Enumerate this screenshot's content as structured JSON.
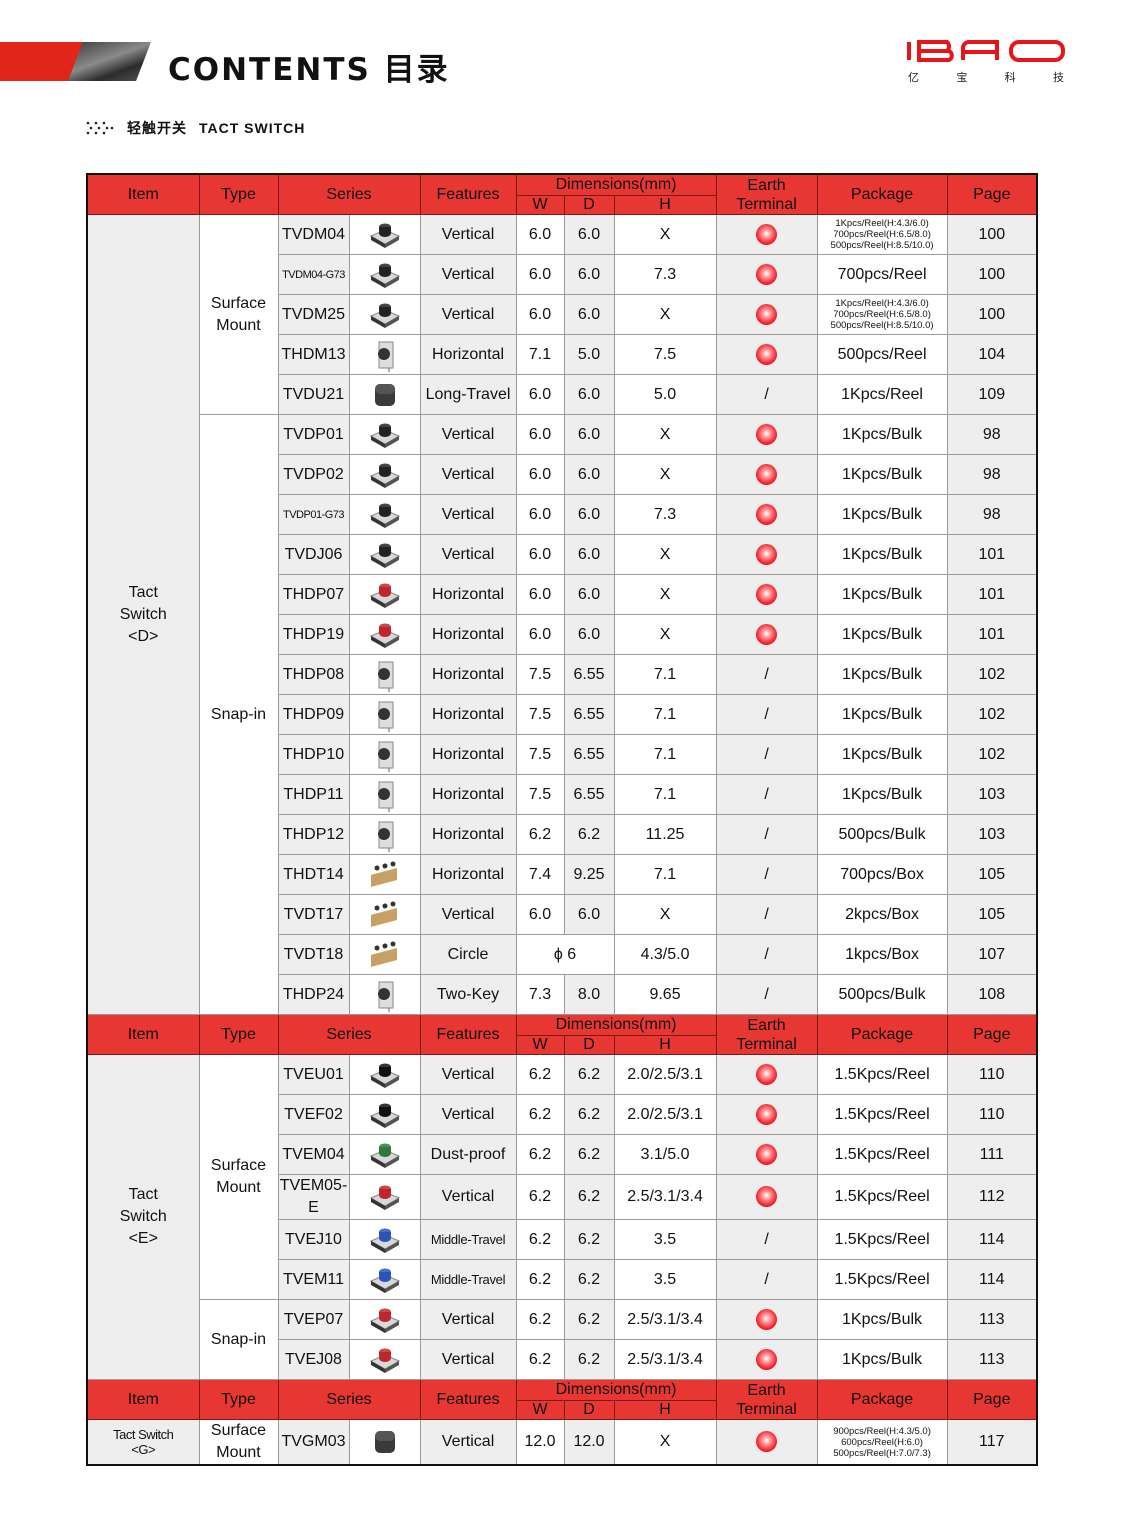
{
  "header": {
    "title": "CONTENTS 目录",
    "subtitle_cn": "轻触开关",
    "subtitle_en": "TACT SWITCH"
  },
  "logo": {
    "text": "IBAO",
    "subtitle": [
      "亿",
      "宝",
      "科",
      "技"
    ]
  },
  "colors": {
    "accent": "#e83632",
    "earth_dot": "#f2202a"
  },
  "columns": {
    "item": "Item",
    "type": "Type",
    "series": "Series",
    "features": "Features",
    "dimensions": "Dimensions(mm)",
    "w": "W",
    "d": "D",
    "h": "H",
    "earth": "Earth\nTerminal",
    "package": "Package",
    "page": "Page"
  },
  "sections": [
    {
      "item": "Tact\nSwitch\n<D>",
      "groups": [
        {
          "type": "Surface\nMount",
          "rows": [
            {
              "series": "TVDM04",
              "icon": "smd-black",
              "features": "Vertical",
              "w": "6.0",
              "d": "6.0",
              "h": "X",
              "earth": true,
              "package": [
                "1Kpcs/Reel(H:4.3/6.0)",
                "700pcs/Reel(H:6.5/8.0)",
                "500pcs/Reel(H:8.5/10.0)"
              ],
              "page": "100"
            },
            {
              "series": "TVDM04-G73",
              "icon": "smd-black",
              "features": "Vertical",
              "w": "6.0",
              "d": "6.0",
              "h": "7.3",
              "earth": true,
              "package": "700pcs/Reel",
              "page": "100"
            },
            {
              "series": "TVDM25",
              "icon": "smd-black",
              "features": "Vertical",
              "w": "6.0",
              "d": "6.0",
              "h": "X",
              "earth": true,
              "package": [
                "1Kpcs/Reel(H:4.3/6.0)",
                "700pcs/Reel(H:6.5/8.0)",
                "500pcs/Reel(H:8.5/10.0)"
              ],
              "page": "100"
            },
            {
              "series": "THDM13",
              "icon": "horizontal",
              "features": "Horizontal",
              "w": "7.1",
              "d": "5.0",
              "h": "7.5",
              "earth": true,
              "package": "500pcs/Reel",
              "page": "104"
            },
            {
              "series": "TVDU21",
              "icon": "square-cap",
              "features": "Long-Travel",
              "w": "6.0",
              "d": "6.0",
              "h": "5.0",
              "earth": "/",
              "package": "1Kpcs/Reel",
              "page": "109"
            }
          ]
        },
        {
          "type": "Snap-in",
          "rows": [
            {
              "series": "TVDP01",
              "icon": "dip-black",
              "features": "Vertical",
              "w": "6.0",
              "d": "6.0",
              "h": "X",
              "earth": true,
              "package": "1Kpcs/Bulk",
              "page": "98"
            },
            {
              "series": "TVDP02",
              "icon": "dip-black",
              "features": "Vertical",
              "w": "6.0",
              "d": "6.0",
              "h": "X",
              "earth": true,
              "package": "1Kpcs/Bulk",
              "page": "98"
            },
            {
              "series": "TVDP01-G73",
              "icon": "dip-black",
              "features": "Vertical",
              "w": "6.0",
              "d": "6.0",
              "h": "7.3",
              "earth": true,
              "package": "1Kpcs/Bulk",
              "page": "98"
            },
            {
              "series": "TVDJ06",
              "icon": "dip-black",
              "features": "Vertical",
              "w": "6.0",
              "d": "6.0",
              "h": "X",
              "earth": true,
              "package": "1Kpcs/Bulk",
              "page": "101"
            },
            {
              "series": "THDP07",
              "icon": "red-cap",
              "features": "Horizontal",
              "w": "6.0",
              "d": "6.0",
              "h": "X",
              "earth": true,
              "package": "1Kpcs/Bulk",
              "page": "101"
            },
            {
              "series": "THDP19",
              "icon": "red-cap",
              "features": "Horizontal",
              "w": "6.0",
              "d": "6.0",
              "h": "X",
              "earth": true,
              "package": "1Kpcs/Bulk",
              "page": "101"
            },
            {
              "series": "THDP08",
              "icon": "horizontal",
              "features": "Horizontal",
              "w": "7.5",
              "d": "6.55",
              "h": "7.1",
              "earth": "/",
              "package": "1Kpcs/Bulk",
              "page": "102"
            },
            {
              "series": "THDP09",
              "icon": "horizontal",
              "features": "Horizontal",
              "w": "7.5",
              "d": "6.55",
              "h": "7.1",
              "earth": "/",
              "package": "1Kpcs/Bulk",
              "page": "102"
            },
            {
              "series": "THDP10",
              "icon": "horizontal",
              "features": "Horizontal",
              "w": "7.5",
              "d": "6.55",
              "h": "7.1",
              "earth": "/",
              "package": "1Kpcs/Bulk",
              "page": "102"
            },
            {
              "series": "THDP11",
              "icon": "horizontal",
              "features": "Horizontal",
              "w": "7.5",
              "d": "6.55",
              "h": "7.1",
              "earth": "/",
              "package": "1Kpcs/Bulk",
              "page": "103"
            },
            {
              "series": "THDP12",
              "icon": "horizontal",
              "features": "Horizontal",
              "w": "6.2",
              "d": "6.2",
              "h": "11.25",
              "earth": "/",
              "package": "500pcs/Bulk",
              "page": "103"
            },
            {
              "series": "THDT14",
              "icon": "tape-reel",
              "features": "Horizontal",
              "w": "7.4",
              "d": "9.25",
              "h": "7.1",
              "earth": "/",
              "package": "700pcs/Box",
              "page": "105"
            },
            {
              "series": "TVDT17",
              "icon": "tape-reel",
              "features": "Vertical",
              "w": "6.0",
              "d": "6.0",
              "h": "X",
              "earth": "/",
              "package": "2kpcs/Box",
              "page": "105"
            },
            {
              "series": "TVDT18",
              "icon": "tape-reel",
              "features": "Circle",
              "wd": "ϕ 6",
              "h": "4.3/5.0",
              "earth": "/",
              "package": "1kpcs/Box",
              "page": "107"
            },
            {
              "series": "THDP24",
              "icon": "horizontal",
              "features": "Two-Key",
              "w": "7.3",
              "d": "8.0",
              "h": "9.65",
              "earth": "/",
              "package": "500pcs/Bulk",
              "page": "108"
            }
          ]
        }
      ]
    },
    {
      "item": "Tact\nSwitch\n<E>",
      "groups": [
        {
          "type": "Surface\nMount",
          "rows": [
            {
              "series": "TVEU01",
              "icon": "black-cap",
              "features": "Vertical",
              "w": "6.2",
              "d": "6.2",
              "h": "2.0/2.5/3.1",
              "earth": true,
              "package": "1.5Kpcs/Reel",
              "page": "110"
            },
            {
              "series": "TVEF02",
              "icon": "black-cap",
              "features": "Vertical",
              "w": "6.2",
              "d": "6.2",
              "h": "2.0/2.5/3.1",
              "earth": true,
              "package": "1.5Kpcs/Reel",
              "page": "110"
            },
            {
              "series": "TVEM04",
              "icon": "green-cap",
              "features": "Dust-proof",
              "w": "6.2",
              "d": "6.2",
              "h": "3.1/5.0",
              "earth": true,
              "package": "1.5Kpcs/Reel",
              "page": "111"
            },
            {
              "series": "TVEM05-E",
              "icon": "red-cap",
              "features": "Vertical",
              "w": "6.2",
              "d": "6.2",
              "h": "2.5/3.1/3.4",
              "earth": true,
              "package": "1.5Kpcs/Reel",
              "page": "112"
            },
            {
              "series": "TVEJ10",
              "icon": "blue-cap",
              "features": "Middle-Travel",
              "w": "6.2",
              "d": "6.2",
              "h": "3.5",
              "earth": "/",
              "package": "1.5Kpcs/Reel",
              "page": "114"
            },
            {
              "series": "TVEM11",
              "icon": "blue-cap",
              "features": "Middle-Travel",
              "w": "6.2",
              "d": "6.2",
              "h": "3.5",
              "earth": "/",
              "package": "1.5Kpcs/Reel",
              "page": "114"
            }
          ]
        },
        {
          "type": "Snap-in",
          "rows": [
            {
              "series": "TVEP07",
              "icon": "red-cap",
              "features": "Vertical",
              "w": "6.2",
              "d": "6.2",
              "h": "2.5/3.1/3.4",
              "earth": true,
              "package": "1Kpcs/Bulk",
              "page": "113"
            },
            {
              "series": "TVEJ08",
              "icon": "red-cap",
              "features": "Vertical",
              "w": "6.2",
              "d": "6.2",
              "h": "2.5/3.1/3.4",
              "earth": true,
              "package": "1Kpcs/Bulk",
              "page": "113"
            }
          ]
        }
      ]
    },
    {
      "item": "Tact Switch\n<G>",
      "groups": [
        {
          "type": "Surface\nMount",
          "rows": [
            {
              "series": "TVGM03",
              "icon": "square-cap",
              "features": "Vertical",
              "w": "12.0",
              "d": "12.0",
              "h": "X",
              "earth": true,
              "package": [
                "900pcs/Reel(H:4.3/5.0)",
                "600pcs/Reel(H:6.0)",
                "500pcs/Reel(H:7.0/7.3)"
              ],
              "page": "117"
            }
          ]
        }
      ]
    }
  ]
}
